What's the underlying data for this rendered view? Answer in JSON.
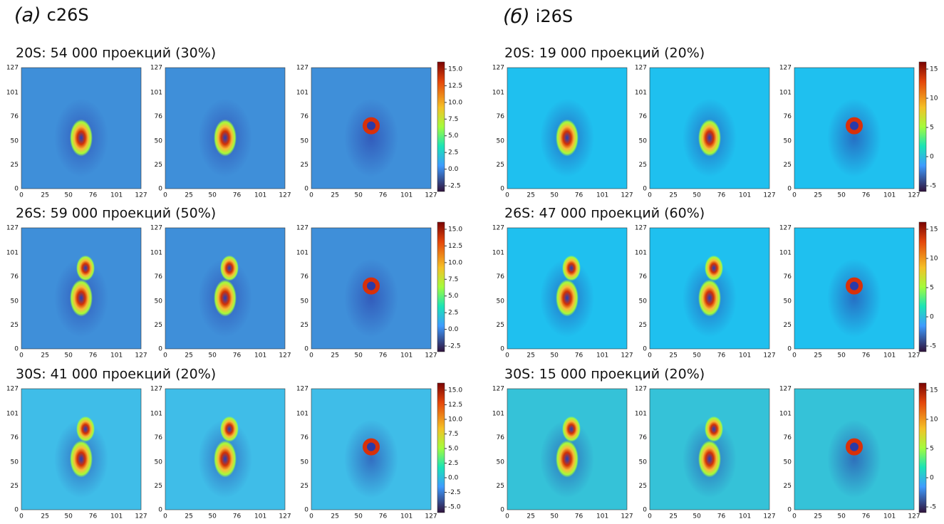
{
  "panels": [
    {
      "label": "(а)",
      "name": "c26S",
      "rows": [
        {
          "title": "20S: 54 000 проекций (30%)",
          "colorbar_ticks": [
            "15.0",
            "12.5",
            "10.0",
            "7.5",
            "5.0",
            "2.5",
            "0.0",
            "-2.5"
          ]
        },
        {
          "title": "26S: 59 000 проекций (50%)",
          "colorbar_ticks": [
            "15.0",
            "12.5",
            "10.0",
            "7.5",
            "5.0",
            "2.5",
            "0.0",
            "-2.5"
          ]
        },
        {
          "title": "30S: 41 000 проекций (20%)",
          "colorbar_ticks": [
            "15.0",
            "12.5",
            "10.0",
            "7.5",
            "5.0",
            "2.5",
            "0.0",
            "-2.5",
            "-5.0"
          ]
        }
      ]
    },
    {
      "label": "(б)",
      "name": "i26S",
      "rows": [
        {
          "title": "20S: 19 000 проекций (20%)",
          "colorbar_ticks": [
            "15",
            "10",
            "5",
            "0",
            "-5"
          ]
        },
        {
          "title": "26S: 47 000 проекций (60%)",
          "colorbar_ticks": [
            "15",
            "10",
            "5",
            "0",
            "-5"
          ]
        },
        {
          "title": "30S: 15 000 проекций (20%)",
          "colorbar_ticks": [
            "15",
            "10",
            "5",
            "0",
            "-5"
          ]
        }
      ]
    }
  ],
  "axis_ticks": [
    "0",
    "25",
    "50",
    "76",
    "101",
    "127"
  ]
}
